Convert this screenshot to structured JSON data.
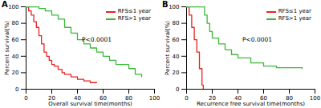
{
  "chart_data": [
    {
      "type": "line",
      "title": "A",
      "line_style": "step",
      "x_label": "Overall survival time(months)",
      "y_label": "Percent survival(%)",
      "xlim": [
        0,
        100
      ],
      "xticks": [
        0,
        20,
        40,
        60,
        80,
        100
      ],
      "ylim": [
        0,
        100
      ],
      "yticks": [
        0,
        20,
        40,
        60,
        80,
        100
      ],
      "grid": false,
      "legend": "top-right",
      "annotation": "P<0.0001",
      "series": [
        {
          "name": "RFS≤1 year",
          "color": "#e8231e",
          "x": [
            0,
            2,
            4,
            6,
            8,
            10,
            12,
            14,
            16,
            18,
            20,
            22,
            25,
            28,
            30,
            35,
            40,
            45,
            50,
            55
          ],
          "values": [
            100,
            95,
            90,
            82,
            75,
            65,
            55,
            45,
            40,
            35,
            30,
            28,
            24,
            20,
            18,
            15,
            12,
            10,
            8,
            8
          ]
        },
        {
          "name": "RFS>1 year",
          "color": "#3cb83a",
          "x": [
            0,
            10,
            15,
            20,
            25,
            30,
            35,
            40,
            45,
            50,
            55,
            60,
            65,
            70,
            80,
            85,
            90
          ],
          "values": [
            100,
            98,
            95,
            90,
            85,
            75,
            68,
            60,
            55,
            50,
            45,
            40,
            35,
            30,
            25,
            18,
            15
          ]
        }
      ]
    },
    {
      "type": "line",
      "title": "B",
      "line_style": "step",
      "x_label": "Recurrence free survival time(months)",
      "y_label": "Percent survival(%)",
      "xlim": [
        0,
        100
      ],
      "xticks": [
        0,
        20,
        40,
        60,
        80,
        100
      ],
      "ylim": [
        0,
        100
      ],
      "yticks": [
        0,
        20,
        40,
        60,
        80,
        100
      ],
      "grid": false,
      "legend": "top-right",
      "annotation": "P<0.0001",
      "series": [
        {
          "name": "RFS≤1 year",
          "color": "#e8231e",
          "x": [
            0,
            2,
            4,
            6,
            8,
            10,
            12,
            13
          ],
          "values": [
            100,
            90,
            75,
            60,
            45,
            25,
            5,
            0
          ]
        },
        {
          "name": "RFS>1 year",
          "color": "#3cb83a",
          "x": [
            0,
            12,
            14,
            16,
            18,
            20,
            25,
            30,
            35,
            40,
            50,
            60,
            70,
            90
          ],
          "values": [
            100,
            100,
            90,
            80,
            70,
            62,
            55,
            48,
            42,
            38,
            32,
            28,
            26,
            25
          ]
        }
      ]
    }
  ]
}
